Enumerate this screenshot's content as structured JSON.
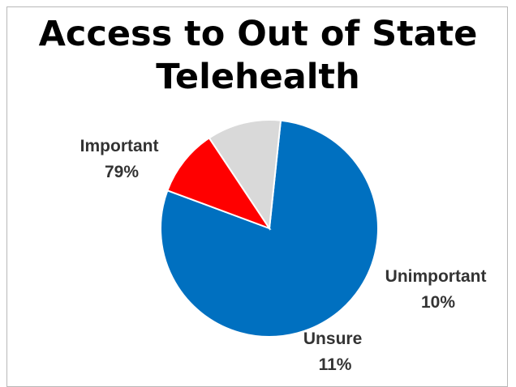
{
  "chart_data": {
    "type": "pie",
    "title": [
      "Access to Out of State",
      "Telehealth"
    ],
    "slices": [
      {
        "label": "Important",
        "pct_text": "79%",
        "value": 79,
        "color": "#0070C0"
      },
      {
        "label": "Unimportant",
        "pct_text": "10%",
        "value": 10,
        "color": "#FF0000"
      },
      {
        "label": "Unsure",
        "pct_text": "11%",
        "value": 11,
        "color": "#D9D9D9"
      }
    ],
    "start_angle_deg": 6,
    "legend": "none"
  }
}
